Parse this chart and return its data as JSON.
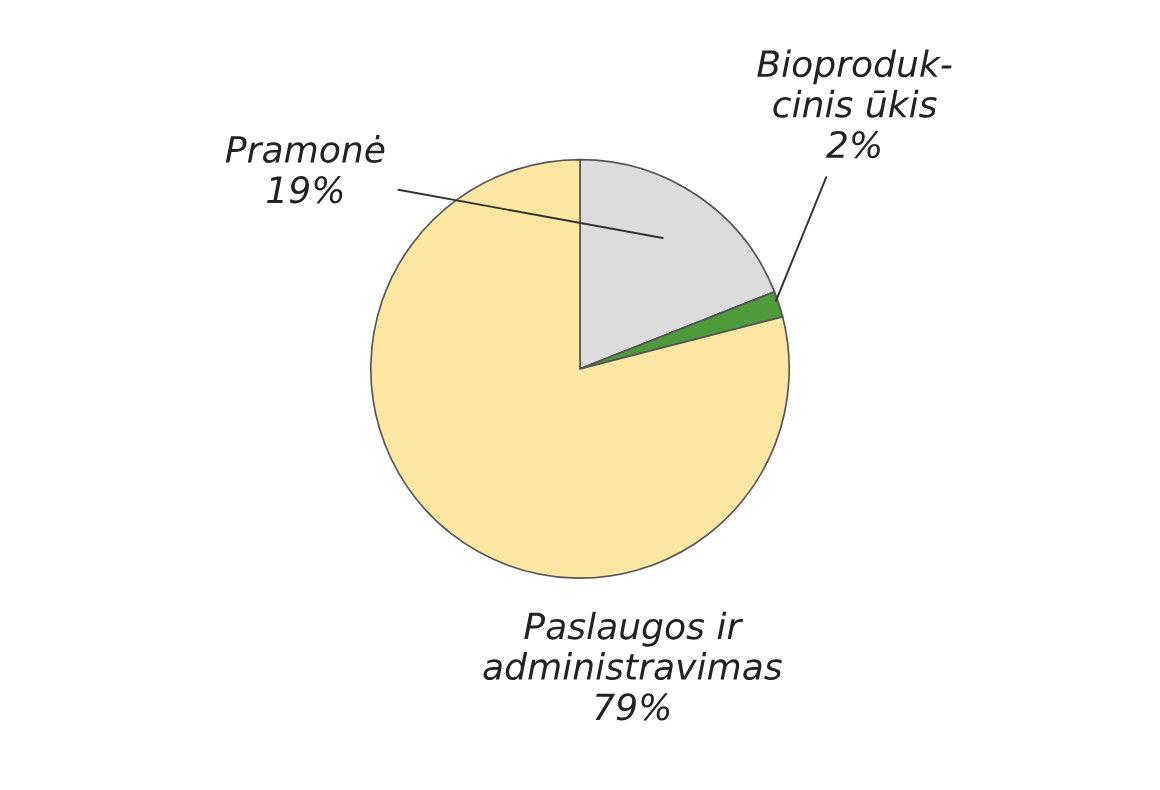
{
  "chart_data": {
    "type": "pie",
    "categories": [
      "Pramonė",
      "Bioproduk-\ncinis ūkis",
      "Paslaugos ir\nadministravimas"
    ],
    "values": [
      19,
      2,
      79
    ],
    "value_labels": [
      "19%",
      "2%",
      "79%"
    ],
    "colors": [
      "#dcdcdc",
      "#4e9a3c",
      "#fbe7a1"
    ]
  }
}
